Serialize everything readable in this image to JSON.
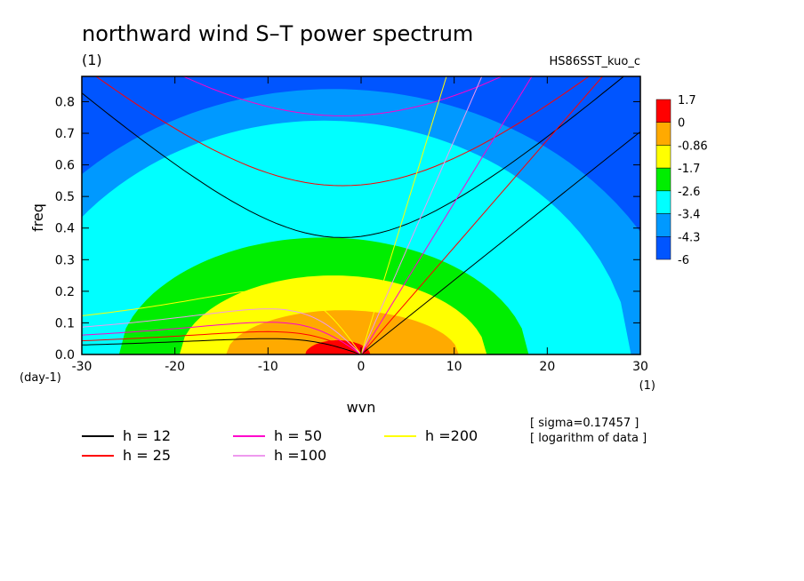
{
  "chart_data": {
    "type": "heatmap",
    "title": "northward wind S–T power spectrum",
    "subtitle_left": "(1)",
    "subtitle_right": "HS86SST_kuo_c",
    "xlabel": "wvn",
    "ylabel": "freq",
    "x_unit": "(1)",
    "y_unit": "(day-1)",
    "xlim": [
      -30,
      30
    ],
    "ylim": [
      0,
      0.88
    ],
    "xticks": [
      "-30",
      "-20",
      "-10",
      "0",
      "10",
      "20",
      "30"
    ],
    "yticks": [
      "0.0",
      "0.1",
      "0.2",
      "0.3",
      "0.4",
      "0.5",
      "0.6",
      "0.7",
      "0.8"
    ],
    "colorbar": {
      "labels": [
        "1.7",
        "0",
        "-0.86",
        "-1.7",
        "-2.6",
        "-3.4",
        "-4.3",
        "-6"
      ],
      "colors": [
        "#0055ff",
        "#0099ff",
        "#00ffff",
        "#00ee00",
        "#ffff00",
        "#ffaa00",
        "#ff0000"
      ]
    },
    "contour_levels": [
      {
        "level": -4.3,
        "y_at_0": 0.88,
        "x_span": 40,
        "top": 0.88
      },
      {
        "level": -3.4,
        "y_at_0": 0.74,
        "x_span": 28,
        "top": 0.74
      },
      {
        "level": -2.6,
        "y_at_0": 0.5,
        "x_span": 22,
        "top": 0.5
      },
      {
        "level": -1.7,
        "y_at_0": 0.33,
        "x_span": 17,
        "top": 0.33
      },
      {
        "level": -0.86,
        "y_at_0": 0.22,
        "x_span": 13,
        "top": 0.22
      },
      {
        "level": 0,
        "y_at_0": 0.11,
        "x_span": 11,
        "top": 0.11
      },
      {
        "level": 1.7,
        "y_at_0": 0.04,
        "x_span": 4,
        "top": 0.04
      }
    ],
    "dispersion_curves": [
      {
        "name": "h = 12",
        "h": 12,
        "color": "#000000"
      },
      {
        "name": "h = 25",
        "h": 25,
        "color": "#ff0000"
      },
      {
        "name": "h = 50",
        "h": 50,
        "color": "#ff00cc"
      },
      {
        "name": "h =100",
        "h": 100,
        "color": "#ee99ee"
      },
      {
        "name": "h =200",
        "h": 200,
        "color": "#ffff00"
      }
    ],
    "annotations": [
      "[ sigma=0.17457 ]",
      "[ logarithm of data ]"
    ]
  }
}
